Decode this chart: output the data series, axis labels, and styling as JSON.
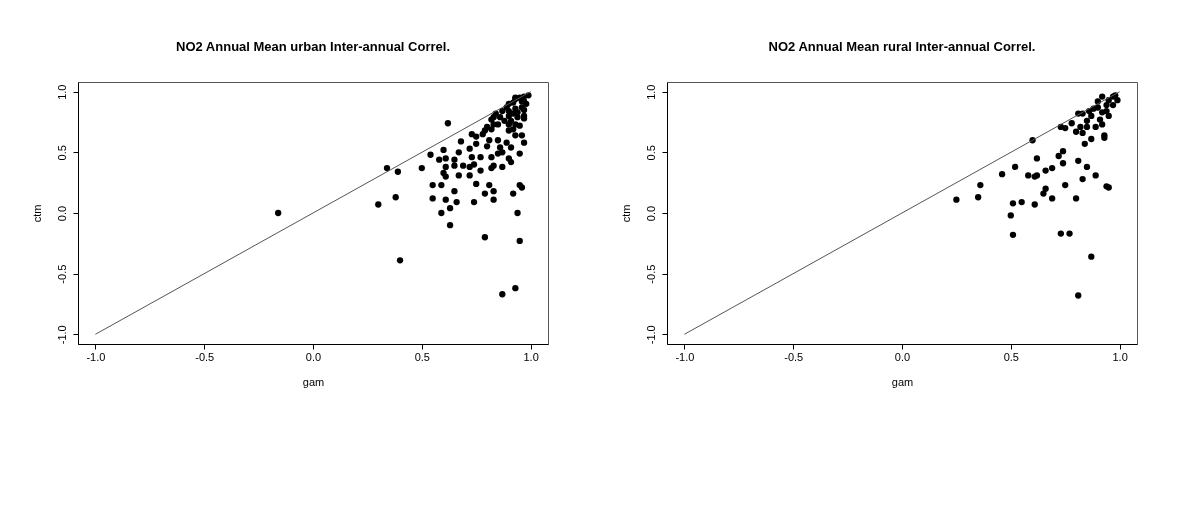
{
  "chart_data": [
    {
      "type": "scatter",
      "title": "NO2 Annual Mean urban Inter-annual Correl.",
      "xlabel": "gam",
      "ylabel": "ctm",
      "xlim": [
        -1.08,
        1.08
      ],
      "ylim": [
        -1.08,
        1.08
      ],
      "xticks": [
        {
          "value": -1,
          "label": "-1.0"
        },
        {
          "value": -0.5,
          "label": "-0.5"
        },
        {
          "value": 0,
          "label": "0.0"
        },
        {
          "value": 0.5,
          "label": "0.5"
        },
        {
          "value": 1,
          "label": "1.0"
        }
      ],
      "yticks": [
        {
          "value": -1,
          "label": "-1.0"
        },
        {
          "value": -0.5,
          "label": "-0.5"
        },
        {
          "value": 0,
          "label": "0.0"
        },
        {
          "value": 0.5,
          "label": "0.5"
        },
        {
          "value": 1,
          "label": "1.0"
        }
      ],
      "grid": false,
      "series": [
        {
          "marker": "circle",
          "color": "#000000",
          "x": [
            -0.16,
            0.3,
            0.34,
            0.39,
            0.38,
            0.4,
            0.5,
            0.62,
            0.54,
            0.6,
            0.58,
            0.61,
            0.6,
            0.61,
            0.61,
            0.55,
            0.59,
            0.55,
            0.61,
            0.59,
            0.63,
            0.63,
            0.65,
            0.66,
            0.65,
            0.65,
            0.67,
            0.67,
            0.68,
            0.69,
            0.72,
            0.72,
            0.73,
            0.72,
            0.74,
            0.75,
            0.74,
            0.73,
            0.75,
            0.75,
            0.77,
            0.77,
            0.79,
            0.79,
            0.81,
            0.83,
            0.83,
            0.83,
            0.82,
            0.82,
            0.8,
            0.81,
            0.82,
            0.79,
            0.78,
            0.8,
            0.82,
            0.83,
            0.85,
            0.86,
            0.87,
            0.87,
            0.89,
            0.85,
            0.9,
            0.91,
            0.9,
            0.92,
            0.93,
            0.95,
            0.93,
            0.96,
            0.95,
            0.92,
            0.95,
            0.96,
            0.94,
            0.95,
            0.93,
            0.87,
            0.91,
            0.97,
            0.86,
            0.87,
            0.89,
            0.9,
            0.92,
            0.93,
            0.95,
            0.97,
            0.99,
            0.97,
            0.96,
            0.94,
            0.92,
            0.9,
            0.88,
            0.97,
            0.98,
            0.97,
            0.91,
            0.93,
            0.96,
            0.84,
            0.83,
            0.85,
            0.9,
            0.93,
            0.97,
            0.94,
            0.9
          ],
          "values": [
            0.0,
            0.07,
            0.37,
            0.34,
            0.13,
            -0.39,
            0.37,
            0.74,
            0.48,
            0.52,
            0.44,
            0.45,
            0.33,
            0.38,
            0.3,
            0.23,
            0.23,
            0.12,
            0.11,
            0.0,
            0.04,
            -0.1,
            0.18,
            0.09,
            0.44,
            0.39,
            0.31,
            0.5,
            0.59,
            0.39,
            0.38,
            0.53,
            0.46,
            0.31,
            0.4,
            0.24,
            0.09,
            0.65,
            0.63,
            0.57,
            0.46,
            0.35,
            -0.2,
            0.16,
            0.23,
            0.18,
            0.11,
            0.39,
            0.37,
            0.46,
            0.55,
            0.6,
            0.69,
            0.68,
            0.65,
            0.71,
            0.77,
            0.73,
            0.6,
            0.54,
            0.38,
            0.5,
            0.58,
            0.49,
            0.45,
            0.42,
            0.68,
            0.69,
            0.73,
            0.72,
            0.64,
            0.64,
            0.49,
            0.16,
            0.23,
            0.21,
            0.0,
            -0.23,
            -0.62,
            -0.67,
            0.54,
            0.58,
            0.79,
            0.84,
            0.87,
            0.9,
            0.91,
            0.94,
            0.95,
            0.96,
            0.97,
            0.92,
            0.87,
            0.83,
            0.82,
            0.8,
            0.76,
            0.85,
            0.9,
            0.78,
            0.76,
            0.95,
            0.92,
            0.82,
            0.79,
            0.73,
            0.73,
            0.86,
            0.8,
            0.79,
            0.84
          ]
        },
        {
          "type": "line",
          "color": "#555555",
          "x": [
            -1,
            1
          ],
          "values": [
            -1,
            1
          ]
        }
      ]
    },
    {
      "type": "scatter",
      "title": "NO2 Annual Mean rural Inter-annual Correl.",
      "xlabel": "gam",
      "ylabel": "ctm",
      "xlim": [
        -1.08,
        1.08
      ],
      "ylim": [
        -1.08,
        1.08
      ],
      "xticks": [
        {
          "value": -1,
          "label": "-1.0"
        },
        {
          "value": -0.5,
          "label": "-0.5"
        },
        {
          "value": 0,
          "label": "0.0"
        },
        {
          "value": 0.5,
          "label": "0.5"
        },
        {
          "value": 1,
          "label": "1.0"
        }
      ],
      "yticks": [
        {
          "value": -1,
          "label": "-1.0"
        },
        {
          "value": -0.5,
          "label": "-0.5"
        },
        {
          "value": 0,
          "label": "0.0"
        },
        {
          "value": 0.5,
          "label": "0.5"
        },
        {
          "value": 1,
          "label": "1.0"
        }
      ],
      "grid": false,
      "series": [
        {
          "marker": "circle",
          "color": "#000000",
          "x": [
            0.25,
            0.35,
            0.36,
            0.46,
            0.52,
            0.5,
            0.51,
            0.51,
            0.55,
            0.58,
            0.6,
            0.61,
            0.61,
            0.62,
            0.62,
            0.66,
            0.66,
            0.65,
            0.69,
            0.69,
            0.72,
            0.74,
            0.73,
            0.74,
            0.75,
            0.77,
            0.73,
            0.75,
            0.78,
            0.8,
            0.81,
            0.81,
            0.83,
            0.84,
            0.85,
            0.87,
            0.87,
            0.89,
            0.93,
            0.93,
            0.94,
            0.95,
            0.95,
            0.8,
            0.83,
            0.81,
            0.83,
            0.87,
            0.85,
            0.82,
            0.89,
            0.9,
            0.92,
            0.88,
            0.9,
            0.92,
            0.94,
            0.95,
            0.97,
            0.98,
            0.99,
            0.97,
            0.91,
            0.85,
            0.86,
            0.94,
            0.92
          ],
          "values": [
            0.11,
            0.13,
            0.23,
            0.32,
            0.38,
            -0.02,
            0.08,
            -0.18,
            0.09,
            0.31,
            0.6,
            0.07,
            0.3,
            0.31,
            0.45,
            0.35,
            0.2,
            0.16,
            0.37,
            0.12,
            0.47,
            0.51,
            -0.17,
            0.41,
            0.23,
            -0.17,
            0.71,
            0.7,
            0.74,
            0.12,
            0.43,
            -0.68,
            0.28,
            0.57,
            0.38,
            -0.36,
            0.61,
            0.31,
            0.64,
            0.62,
            0.22,
            0.21,
            0.8,
            0.67,
            0.66,
            0.82,
            0.82,
            0.8,
            0.76,
            0.71,
            0.71,
            0.92,
            0.96,
            0.86,
            0.87,
            0.83,
            0.89,
            0.93,
            0.96,
            0.97,
            0.93,
            0.89,
            0.77,
            0.71,
            0.84,
            0.84,
            0.73
          ]
        },
        {
          "type": "line",
          "color": "#555555",
          "x": [
            -1,
            1
          ],
          "values": [
            -1,
            1
          ]
        }
      ]
    }
  ]
}
